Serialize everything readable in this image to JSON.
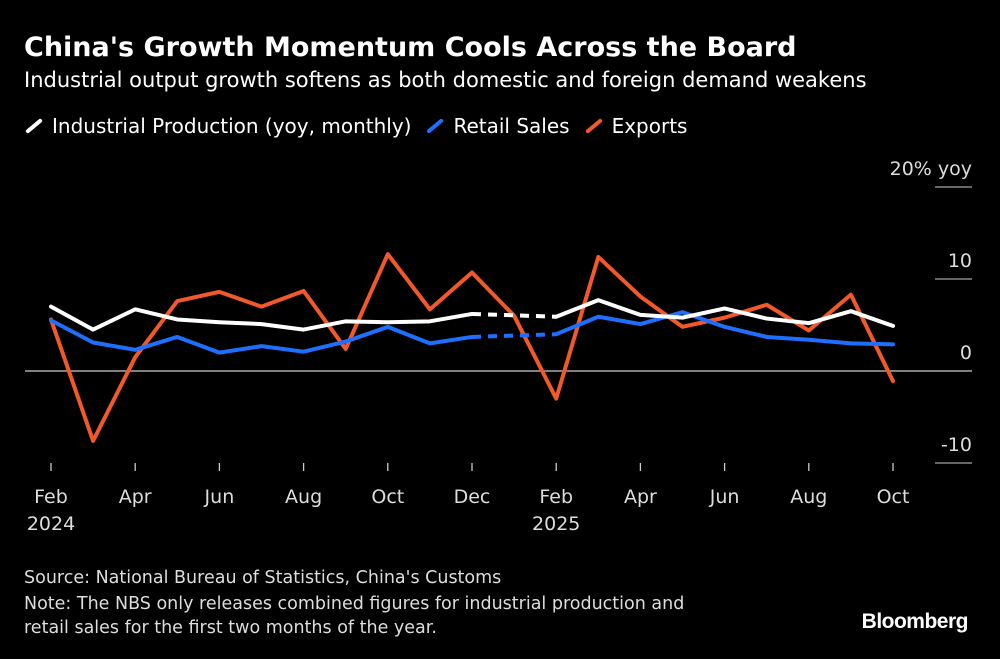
{
  "chart_data": {
    "type": "line",
    "title": "China's Growth Momentum Cools Across the Board",
    "subtitle": "Industrial output growth softens as both domestic and foreign demand weakens",
    "ylabel": "20% yoy",
    "ylim": [
      -10,
      20
    ],
    "yticks": [
      {
        "v": 20,
        "label": "20% yoy"
      },
      {
        "v": 10,
        "label": "10"
      },
      {
        "v": 0,
        "label": "0"
      },
      {
        "v": -10,
        "label": "-10"
      }
    ],
    "x": [
      "2024-02",
      "2024-03",
      "2024-04",
      "2024-05",
      "2024-06",
      "2024-07",
      "2024-08",
      "2024-09",
      "2024-10",
      "2024-11",
      "2024-12",
      "2025-01",
      "2025-02",
      "2025-03",
      "2025-04",
      "2025-05",
      "2025-06",
      "2025-07",
      "2025-08",
      "2025-09",
      "2025-10"
    ],
    "xticks": [
      {
        "i": 0,
        "label": "Feb",
        "year": "2024"
      },
      {
        "i": 2,
        "label": "Apr"
      },
      {
        "i": 4,
        "label": "Jun"
      },
      {
        "i": 6,
        "label": "Aug"
      },
      {
        "i": 8,
        "label": "Oct"
      },
      {
        "i": 10,
        "label": "Dec"
      },
      {
        "i": 12,
        "label": "Feb",
        "year": "2025"
      },
      {
        "i": 14,
        "label": "Apr"
      },
      {
        "i": 16,
        "label": "Jun"
      },
      {
        "i": 18,
        "label": "Aug"
      },
      {
        "i": 20,
        "label": "Oct"
      }
    ],
    "series": [
      {
        "name": "Industrial Production (yoy, monthly)",
        "color": "#ffffff",
        "values": [
          7.0,
          4.5,
          6.7,
          5.6,
          5.3,
          5.1,
          4.5,
          5.4,
          5.3,
          5.4,
          6.2,
          null,
          5.9,
          7.7,
          6.1,
          5.8,
          6.8,
          5.7,
          5.2,
          6.5,
          4.9
        ]
      },
      {
        "name": "Retail Sales",
        "color": "#1f6fff",
        "values": [
          5.5,
          3.1,
          2.3,
          3.7,
          2.0,
          2.7,
          2.1,
          3.2,
          4.8,
          3.0,
          3.7,
          null,
          4.0,
          5.9,
          5.1,
          6.4,
          4.8,
          3.7,
          3.4,
          3.0,
          2.9
        ]
      },
      {
        "name": "Exports",
        "color": "#f2592a",
        "values": [
          5.6,
          -7.6,
          1.5,
          7.6,
          8.6,
          7.0,
          8.7,
          2.4,
          12.7,
          6.7,
          10.7,
          6.0,
          -3.0,
          12.4,
          8.1,
          4.8,
          5.8,
          7.2,
          4.4,
          8.3,
          -1.1
        ]
      }
    ],
    "note_gap": "dashed between Dec 2024 and Feb 2025 for industrial production and retail sales"
  },
  "footer": {
    "source": "Source: National Bureau of Statistics, China's Customs",
    "note1": "Note: The NBS only releases combined figures for industrial production and",
    "note2": "retail sales for the first two months of the year.",
    "logo": "Bloomberg"
  }
}
